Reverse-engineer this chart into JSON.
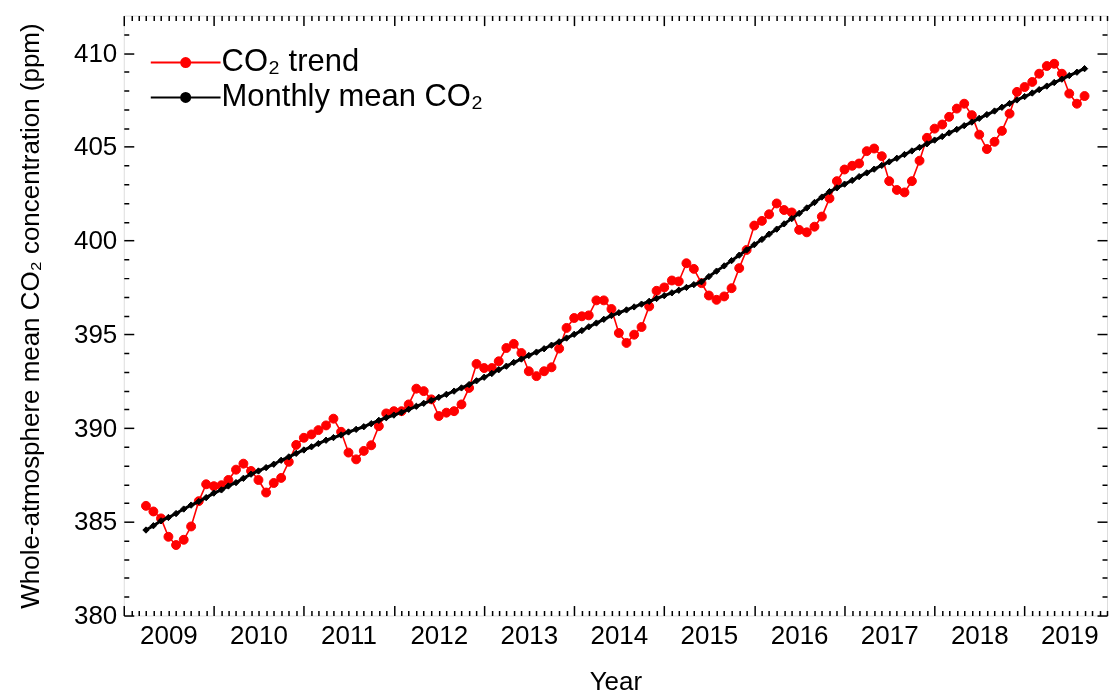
{
  "chart_data": {
    "type": "line",
    "xlabel": "Year",
    "ylabel": "Whole-atmosphere mean CO₂ concentration (ppm)",
    "legend": "top left",
    "x": [
      "2009-04",
      "2009-05",
      "2009-06",
      "2009-07",
      "2009-08",
      "2009-09",
      "2009-10",
      "2009-11",
      "2009-12",
      "2010-01",
      "2010-02",
      "2010-03",
      "2010-04",
      "2010-05",
      "2010-06",
      "2010-07",
      "2010-08",
      "2010-09",
      "2010-10",
      "2010-11",
      "2010-12",
      "2011-01",
      "2011-02",
      "2011-03",
      "2011-04",
      "2011-05",
      "2011-06",
      "2011-07",
      "2011-08",
      "2011-09",
      "2011-10",
      "2011-11",
      "2011-12",
      "2012-01",
      "2012-02",
      "2012-03",
      "2012-04",
      "2012-05",
      "2012-06",
      "2012-07",
      "2012-08",
      "2012-09",
      "2012-10",
      "2012-11",
      "2012-12",
      "2013-01",
      "2013-02",
      "2013-03",
      "2013-04",
      "2013-05",
      "2013-06",
      "2013-07",
      "2013-08",
      "2013-09",
      "2013-10",
      "2013-11",
      "2013-12",
      "2014-01",
      "2014-02",
      "2014-03",
      "2014-04",
      "2014-05",
      "2014-06",
      "2014-07",
      "2014-08",
      "2014-09",
      "2014-10",
      "2014-11",
      "2014-12",
      "2015-01",
      "2015-02",
      "2015-03",
      "2015-04",
      "2015-05",
      "2015-06",
      "2015-07",
      "2015-08",
      "2015-09",
      "2015-10",
      "2015-11",
      "2015-12",
      "2016-01",
      "2016-02",
      "2016-03",
      "2016-04",
      "2016-05",
      "2016-06",
      "2016-07",
      "2016-08",
      "2016-09",
      "2016-10",
      "2016-11",
      "2016-12",
      "2017-01",
      "2017-02",
      "2017-03",
      "2017-04",
      "2017-05",
      "2017-06",
      "2017-07",
      "2017-08",
      "2017-09",
      "2017-10",
      "2017-11",
      "2017-12",
      "2018-01",
      "2018-02",
      "2018-03",
      "2018-04",
      "2018-05",
      "2018-06",
      "2018-07",
      "2018-08",
      "2018-09",
      "2018-10",
      "2018-11",
      "2018-12",
      "2019-01",
      "2019-02",
      "2019-03",
      "2019-04",
      "2019-05",
      "2019-06",
      "2019-07",
      "2019-08",
      "2019-09"
    ],
    "xlim": [
      "2009-01",
      "2019-12"
    ],
    "xticks": [
      {
        "value": "2009-01",
        "label": null
      },
      {
        "value": "2009-02",
        "label": null
      },
      {
        "value": "2009-03",
        "label": null
      },
      {
        "value": "2009-04",
        "label": null
      },
      {
        "value": "2009-05",
        "label": null
      },
      {
        "value": "2009-06",
        "label": null
      },
      {
        "value": "2009-07",
        "label": "2009"
      },
      {
        "value": "2009-08",
        "label": null
      },
      {
        "value": "2009-09",
        "label": null
      },
      {
        "value": "2009-10",
        "label": null
      },
      {
        "value": "2009-11",
        "label": null
      },
      {
        "value": "2009-12",
        "label": null
      },
      {
        "value": "2010-01",
        "label": null
      },
      {
        "value": "2010-02",
        "label": null
      },
      {
        "value": "2010-03",
        "label": null
      },
      {
        "value": "2010-04",
        "label": null
      },
      {
        "value": "2010-05",
        "label": null
      },
      {
        "value": "2010-06",
        "label": null
      },
      {
        "value": "2010-07",
        "label": "2010"
      },
      {
        "value": "2010-08",
        "label": null
      },
      {
        "value": "2010-09",
        "label": null
      },
      {
        "value": "2010-10",
        "label": null
      },
      {
        "value": "2010-11",
        "label": null
      },
      {
        "value": "2010-12",
        "label": null
      },
      {
        "value": "2011-01",
        "label": null
      },
      {
        "value": "2011-02",
        "label": null
      },
      {
        "value": "2011-03",
        "label": null
      },
      {
        "value": "2011-04",
        "label": null
      },
      {
        "value": "2011-05",
        "label": null
      },
      {
        "value": "2011-06",
        "label": null
      },
      {
        "value": "2011-07",
        "label": "2011"
      },
      {
        "value": "2011-08",
        "label": null
      },
      {
        "value": "2011-09",
        "label": null
      },
      {
        "value": "2011-10",
        "label": null
      },
      {
        "value": "2011-11",
        "label": null
      },
      {
        "value": "2011-12",
        "label": null
      },
      {
        "value": "2012-01",
        "label": null
      },
      {
        "value": "2012-02",
        "label": null
      },
      {
        "value": "2012-03",
        "label": null
      },
      {
        "value": "2012-04",
        "label": null
      },
      {
        "value": "2012-05",
        "label": null
      },
      {
        "value": "2012-06",
        "label": null
      },
      {
        "value": "2012-07",
        "label": "2012"
      },
      {
        "value": "2012-08",
        "label": null
      },
      {
        "value": "2012-09",
        "label": null
      },
      {
        "value": "2012-10",
        "label": null
      },
      {
        "value": "2012-11",
        "label": null
      },
      {
        "value": "2012-12",
        "label": null
      },
      {
        "value": "2013-01",
        "label": null
      },
      {
        "value": "2013-02",
        "label": null
      },
      {
        "value": "2013-03",
        "label": null
      },
      {
        "value": "2013-04",
        "label": null
      },
      {
        "value": "2013-05",
        "label": null
      },
      {
        "value": "2013-06",
        "label": null
      },
      {
        "value": "2013-07",
        "label": "2013"
      },
      {
        "value": "2013-08",
        "label": null
      },
      {
        "value": "2013-09",
        "label": null
      },
      {
        "value": "2013-10",
        "label": null
      },
      {
        "value": "2013-11",
        "label": null
      },
      {
        "value": "2013-12",
        "label": null
      },
      {
        "value": "2014-01",
        "label": null
      },
      {
        "value": "2014-02",
        "label": null
      },
      {
        "value": "2014-03",
        "label": null
      },
      {
        "value": "2014-04",
        "label": null
      },
      {
        "value": "2014-05",
        "label": null
      },
      {
        "value": "2014-06",
        "label": null
      },
      {
        "value": "2014-07",
        "label": "2014"
      },
      {
        "value": "2014-08",
        "label": null
      },
      {
        "value": "2014-09",
        "label": null
      },
      {
        "value": "2014-10",
        "label": null
      },
      {
        "value": "2014-11",
        "label": null
      },
      {
        "value": "2014-12",
        "label": null
      },
      {
        "value": "2015-01",
        "label": null
      },
      {
        "value": "2015-02",
        "label": null
      },
      {
        "value": "2015-03",
        "label": null
      },
      {
        "value": "2015-04",
        "label": null
      },
      {
        "value": "2015-05",
        "label": null
      },
      {
        "value": "2015-06",
        "label": null
      },
      {
        "value": "2015-07",
        "label": "2015"
      },
      {
        "value": "2015-08",
        "label": null
      },
      {
        "value": "2015-09",
        "label": null
      },
      {
        "value": "2015-10",
        "label": null
      },
      {
        "value": "2015-11",
        "label": null
      },
      {
        "value": "2015-12",
        "label": null
      },
      {
        "value": "2016-01",
        "label": null
      },
      {
        "value": "2016-02",
        "label": null
      },
      {
        "value": "2016-03",
        "label": null
      },
      {
        "value": "2016-04",
        "label": null
      },
      {
        "value": "2016-05",
        "label": null
      },
      {
        "value": "2016-06",
        "label": null
      },
      {
        "value": "2016-07",
        "label": "2016"
      },
      {
        "value": "2016-08",
        "label": null
      },
      {
        "value": "2016-09",
        "label": null
      },
      {
        "value": "2016-10",
        "label": null
      },
      {
        "value": "2016-11",
        "label": null
      },
      {
        "value": "2016-12",
        "label": null
      },
      {
        "value": "2017-01",
        "label": null
      },
      {
        "value": "2017-02",
        "label": null
      },
      {
        "value": "2017-03",
        "label": null
      },
      {
        "value": "2017-04",
        "label": null
      },
      {
        "value": "2017-05",
        "label": null
      },
      {
        "value": "2017-06",
        "label": null
      },
      {
        "value": "2017-07",
        "label": "2017"
      },
      {
        "value": "2017-08",
        "label": null
      },
      {
        "value": "2017-09",
        "label": null
      },
      {
        "value": "2017-10",
        "label": null
      },
      {
        "value": "2017-11",
        "label": null
      },
      {
        "value": "2017-12",
        "label": null
      },
      {
        "value": "2018-01",
        "label": null
      },
      {
        "value": "2018-02",
        "label": null
      },
      {
        "value": "2018-03",
        "label": null
      },
      {
        "value": "2018-04",
        "label": null
      },
      {
        "value": "2018-05",
        "label": null
      },
      {
        "value": "2018-06",
        "label": null
      },
      {
        "value": "2018-07",
        "label": "2018"
      },
      {
        "value": "2018-08",
        "label": null
      },
      {
        "value": "2018-09",
        "label": null
      },
      {
        "value": "2018-10",
        "label": null
      },
      {
        "value": "2018-11",
        "label": null
      },
      {
        "value": "2018-12",
        "label": null
      },
      {
        "value": "2019-01",
        "label": null
      },
      {
        "value": "2019-02",
        "label": null
      },
      {
        "value": "2019-03",
        "label": null
      },
      {
        "value": "2019-04",
        "label": null
      },
      {
        "value": "2019-05",
        "label": null
      },
      {
        "value": "2019-06",
        "label": null
      },
      {
        "value": "2019-07",
        "label": "2019"
      },
      {
        "value": "2019-08",
        "label": null
      },
      {
        "value": "2019-09",
        "label": null
      },
      {
        "value": "2019-10",
        "label": null
      },
      {
        "value": "2019-11",
        "label": null
      },
      {
        "value": "2019-12",
        "label": null
      }
    ],
    "ylim": [
      380,
      412
    ],
    "yticks": [
      380,
      {
        "value": 381,
        "label": null
      },
      {
        "value": 382,
        "label": null
      },
      {
        "value": 383,
        "label": null
      },
      {
        "value": 384,
        "label": null
      },
      385,
      {
        "value": 386,
        "label": null
      },
      {
        "value": 387,
        "label": null
      },
      {
        "value": 388,
        "label": null
      },
      {
        "value": 389,
        "label": null
      },
      390,
      {
        "value": 391,
        "label": null
      },
      {
        "value": 392,
        "label": null
      },
      {
        "value": 393,
        "label": null
      },
      {
        "value": 394,
        "label": null
      },
      395,
      {
        "value": 396,
        "label": null
      },
      {
        "value": 397,
        "label": null
      },
      {
        "value": 398,
        "label": null
      },
      {
        "value": 399,
        "label": null
      },
      400,
      {
        "value": 401,
        "label": null
      },
      {
        "value": 402,
        "label": null
      },
      {
        "value": 403,
        "label": null
      },
      {
        "value": 404,
        "label": null
      },
      405,
      {
        "value": 406,
        "label": null
      },
      {
        "value": 407,
        "label": null
      },
      {
        "value": 408,
        "label": null
      },
      {
        "value": 409,
        "label": null
      },
      410,
      {
        "value": 411,
        "label": null
      }
    ],
    "series": [
      {
        "name": "CO₂ trend",
        "color": "#ff0000",
        "marker": "circle",
        "values": [
          385.85,
          385.55,
          385.18,
          384.2,
          383.76,
          384.04,
          384.75,
          386.1,
          387.0,
          386.9,
          386.95,
          387.23,
          387.78,
          388.1,
          387.71,
          387.23,
          386.56,
          387.07,
          387.34,
          388.2,
          389.1,
          389.48,
          389.66,
          389.89,
          390.14,
          390.5,
          389.8,
          388.69,
          388.33,
          388.78,
          389.08,
          390.1,
          390.78,
          390.9,
          390.9,
          391.26,
          392.1,
          391.97,
          391.53,
          390.64,
          390.82,
          390.9,
          391.26,
          392.14,
          393.42,
          393.2,
          393.2,
          393.56,
          394.27,
          394.49,
          394.0,
          393.03,
          392.77,
          393.03,
          393.24,
          394.24,
          395.34,
          395.87,
          395.96,
          396.01,
          396.81,
          396.81,
          396.35,
          395.07,
          394.54,
          394.98,
          395.39,
          396.49,
          397.32,
          397.5,
          397.87,
          397.82,
          398.79,
          398.49,
          397.73,
          397.07,
          396.84,
          397.02,
          397.46,
          398.53,
          399.5,
          400.8,
          401.05,
          401.4,
          401.98,
          401.63,
          401.5,
          400.57,
          400.44,
          400.74,
          401.28,
          402.25,
          403.17,
          403.79,
          403.99,
          404.11,
          404.77,
          404.91,
          404.5,
          403.17,
          402.7,
          402.57,
          403.17,
          404.26,
          405.48,
          405.97,
          406.19,
          406.6,
          407.04,
          407.3,
          406.69,
          405.65,
          404.88,
          405.27,
          405.85,
          406.77,
          407.93,
          408.19,
          408.46,
          408.9,
          409.31,
          409.43,
          408.9,
          407.84,
          407.3,
          407.71
        ]
      },
      {
        "name": "Monthly mean CO₂",
        "color": "#000000",
        "marker": "diamond",
        "values": [
          384.56,
          384.79,
          385.05,
          385.23,
          385.44,
          385.68,
          385.89,
          386.08,
          386.29,
          386.53,
          386.7,
          386.91,
          387.09,
          387.32,
          387.54,
          387.71,
          387.89,
          388.07,
          388.28,
          388.46,
          388.65,
          388.83,
          389.0,
          389.17,
          389.35,
          389.49,
          389.63,
          389.79,
          389.93,
          390.07,
          390.23,
          390.41,
          390.55,
          390.69,
          390.84,
          391.0,
          391.16,
          391.32,
          391.48,
          391.64,
          391.8,
          391.97,
          392.14,
          392.32,
          392.52,
          392.71,
          392.91,
          393.11,
          393.3,
          393.5,
          393.68,
          393.87,
          394.05,
          394.23,
          394.42,
          394.6,
          394.8,
          395.0,
          395.2,
          395.4,
          395.6,
          395.8,
          396.0,
          396.15,
          396.3,
          396.46,
          396.61,
          396.76,
          396.91,
          397.06,
          397.21,
          397.35,
          397.5,
          397.65,
          397.8,
          398.08,
          398.37,
          398.65,
          398.93,
          399.22,
          399.5,
          399.78,
          400.06,
          400.34,
          400.61,
          400.89,
          401.17,
          401.45,
          401.74,
          402.03,
          402.32,
          402.61,
          402.81,
          403.01,
          403.21,
          403.41,
          403.61,
          403.81,
          404.01,
          404.2,
          404.39,
          404.59,
          404.78,
          404.97,
          405.16,
          405.36,
          405.55,
          405.74,
          405.93,
          406.13,
          406.32,
          406.52,
          406.72,
          406.91,
          407.11,
          407.31,
          407.5,
          407.68,
          407.87,
          408.05,
          408.24,
          408.43,
          408.61,
          408.8,
          408.98,
          409.17
        ]
      }
    ]
  }
}
